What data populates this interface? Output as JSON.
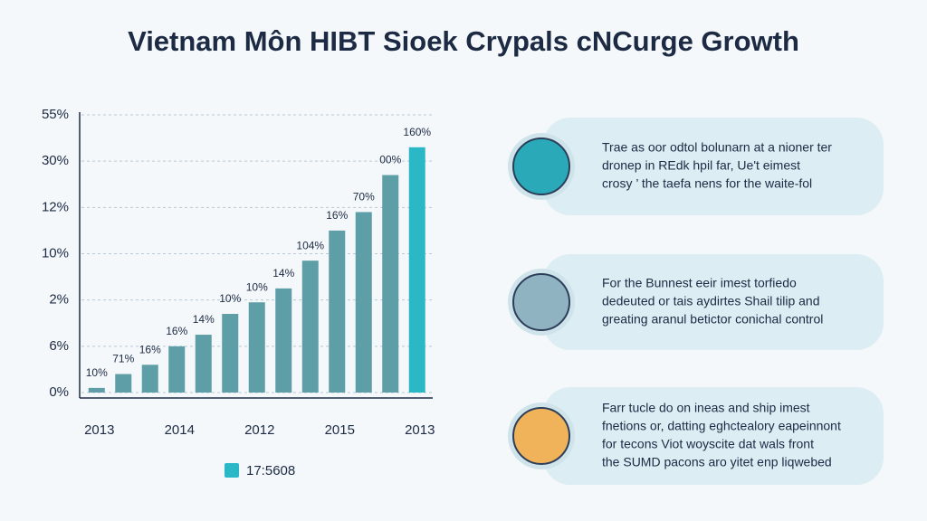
{
  "chart_data": {
    "type": "bar",
    "title": "Vietnam Môn HIBT Sioek Crypals cNCurge Growth",
    "categories": [
      "2013",
      null,
      null,
      "2014",
      null,
      null,
      "2012",
      null,
      null,
      "2015",
      null,
      null,
      "2013"
    ],
    "values": [
      0.1,
      0.4,
      0.6,
      1.0,
      1.25,
      1.7,
      1.95,
      2.25,
      2.85,
      3.5,
      3.9,
      4.7,
      5.3
    ],
    "annotations": [
      "10%",
      "71%",
      "16%",
      "16%",
      "14%",
      "10%",
      "10%",
      "14%",
      "104%",
      "16%",
      "70%",
      "00%",
      "160%"
    ],
    "colors": [
      "#5e9ea6",
      "#5e9ea6",
      "#5e9ea6",
      "#5e9ea6",
      "#5e9ea6",
      "#5e9ea6",
      "#5e9ea6",
      "#5e9ea6",
      "#5e9ea6",
      "#5e9ea6",
      "#5e9ea6",
      "#5e9ea6",
      "#2bb8c6"
    ],
    "ylim": [
      0,
      6
    ],
    "yticks": [
      {
        "value": 0,
        "label": "0%"
      },
      {
        "value": 1,
        "label": "6%"
      },
      {
        "value": 2,
        "label": "2%"
      },
      {
        "value": 3,
        "label": "10%"
      },
      {
        "value": 4,
        "label": "12%"
      },
      {
        "value": 5,
        "label": "30%"
      },
      {
        "value": 6,
        "label": "55%"
      }
    ],
    "grid": true,
    "legend": {
      "name": "17:5608",
      "color": "#2bb8c6"
    }
  },
  "panels": [
    {
      "lines": [
        "Trae as oor odtol bolunarn at a nioner ter",
        "dronep in REdk hpil far, Ue't eimest",
        "crosy ’ the taefa nens for the waite-fol"
      ],
      "icon_color": "#2aa9b8"
    },
    {
      "lines": [
        "For the Bunnest eeir imest torfiedo",
        "dedeuted or tais aydirtes Shail tilip and",
        "greating aranul betictor conichal control"
      ],
      "icon_color": "#8fb3c0"
    },
    {
      "lines": [
        "Farr tucle do on ineas and ship imest",
        "fnetions or, datting eghctealory eapeinnont",
        "for tecons Viot woyscite dat wals front",
        "the SUMD pacons aro yitet enp liqwebed"
      ],
      "icon_color": "#f0b35a"
    }
  ]
}
